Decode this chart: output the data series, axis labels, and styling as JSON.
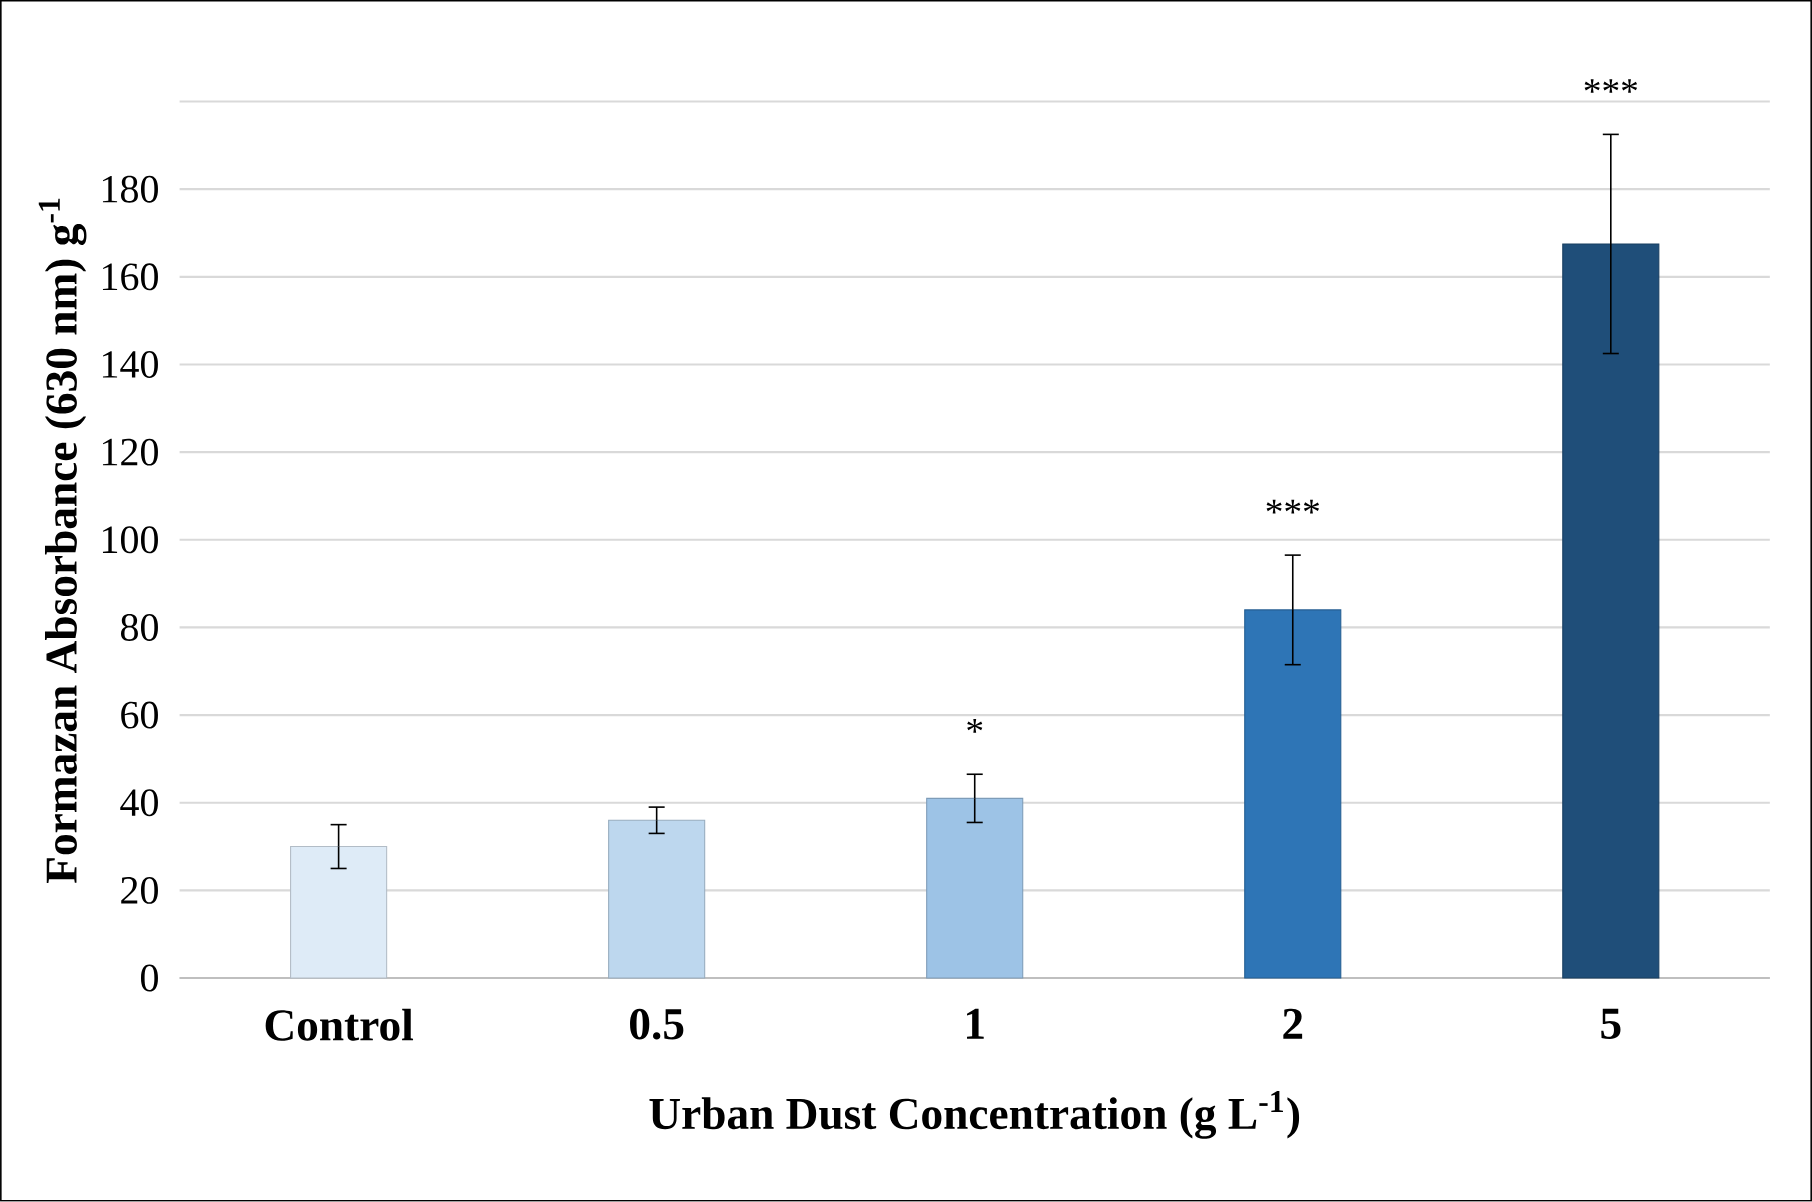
{
  "chart_data": {
    "type": "bar",
    "xlabel": "Urban Dust Concentration (g L$^{-1}$)",
    "ylabel": "Formazan Absorbance (630 nm) g$^{-1}$",
    "categories": [
      "Control",
      "0.5",
      "1",
      "2",
      "5"
    ],
    "values": [
      30,
      36,
      41,
      84,
      167.5
    ],
    "errors": [
      5,
      3,
      5.5,
      12.5,
      25
    ],
    "colors": [
      "#deebf7",
      "#bdd7ee",
      "#9dc3e6",
      "#2e75b6",
      "#1f4e79"
    ],
    "ylim": [
      0,
      200
    ],
    "yticks": [
      0,
      20,
      40,
      60,
      80,
      100,
      120,
      140,
      160,
      180,
      {
        "value": 200,
        "label": null
      }
    ],
    "grid": "y",
    "annotations": [
      {
        "text": "*",
        "x": "1",
        "y": 46.5
      },
      {
        "text": "***",
        "x": "2",
        "y": 96.5
      },
      {
        "text": "***",
        "x": "5",
        "y": 192.5
      }
    ]
  }
}
